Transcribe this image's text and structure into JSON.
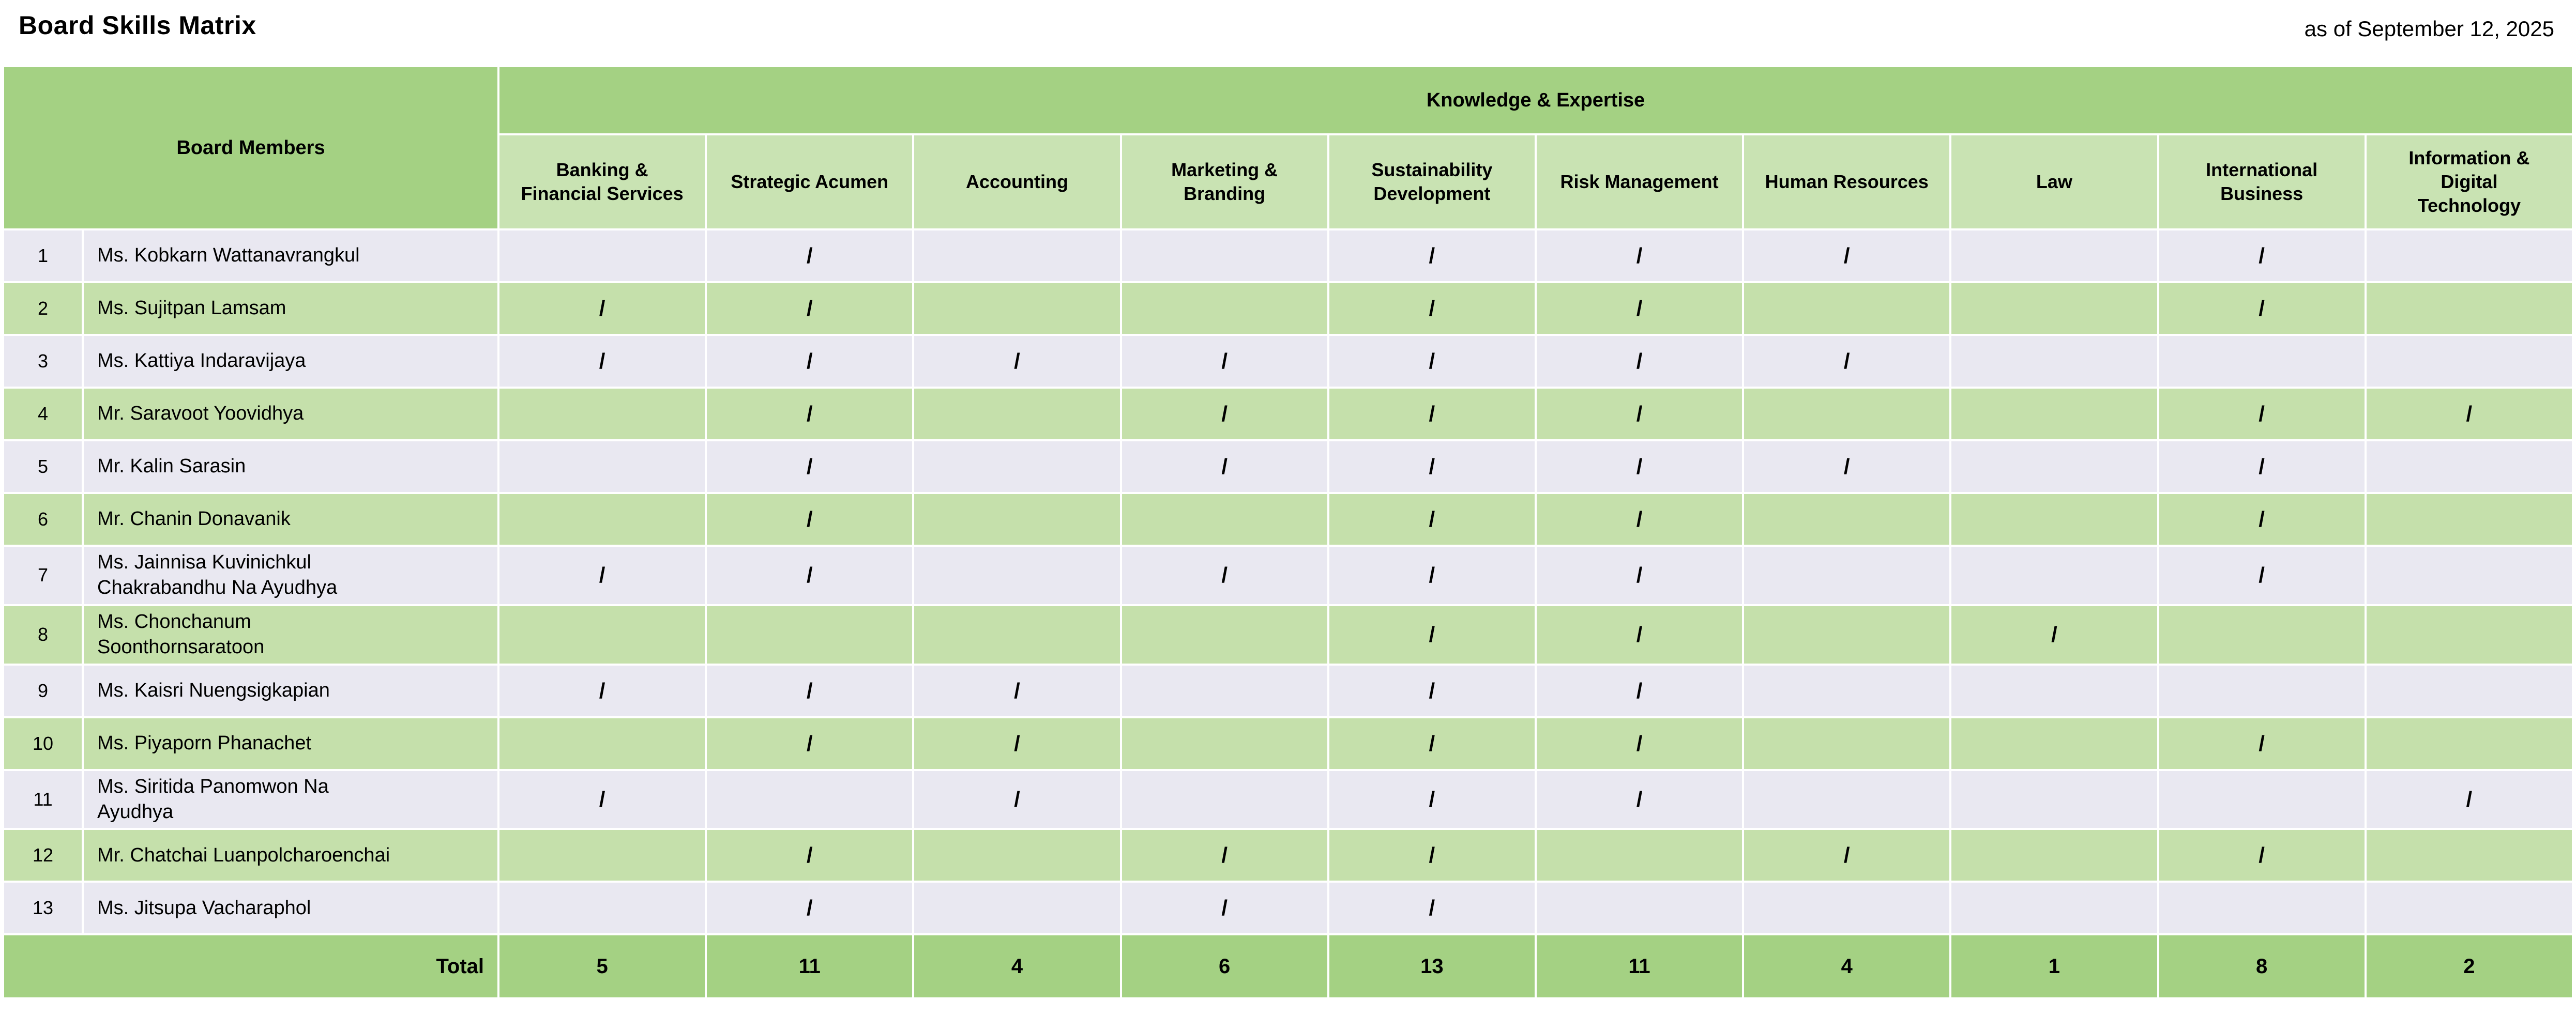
{
  "page": {
    "title": "Board Skills Matrix",
    "date_note": "as of September 12, 2025"
  },
  "table": {
    "corner_header": "Board Members",
    "group_header": "Knowledge & Expertise",
    "columns": [
      "Banking & Financial Services",
      "Strategic Acumen",
      "Accounting",
      "Marketing & Branding",
      "Sustainability Development",
      "Risk Management",
      "Human Resources",
      "Law",
      "International Business",
      "Information & Digital Technology"
    ],
    "mark_symbol": "/",
    "rows": [
      {
        "num": "1",
        "name": "Ms. Kobkarn Wattanavrangkul",
        "marks": [
          "",
          "/",
          "",
          "",
          "/",
          "/",
          "/",
          "",
          "/",
          ""
        ]
      },
      {
        "num": "2",
        "name": "Ms. Sujitpan Lamsam",
        "marks": [
          "/",
          "/",
          "",
          "",
          "/",
          "/",
          "",
          "",
          "/",
          ""
        ]
      },
      {
        "num": "3",
        "name": "Ms. Kattiya Indaravijaya",
        "marks": [
          "/",
          "/",
          "/",
          "/",
          "/",
          "/",
          "/",
          "",
          "",
          ""
        ]
      },
      {
        "num": "4",
        "name": "Mr. Saravoot Yoovidhya",
        "marks": [
          "",
          "/",
          "",
          "/",
          "/",
          "/",
          "",
          "",
          "/",
          "/"
        ]
      },
      {
        "num": "5",
        "name": "Mr. Kalin Sarasin",
        "marks": [
          "",
          "/",
          "",
          "/",
          "/",
          "/",
          "/",
          "",
          "/",
          ""
        ]
      },
      {
        "num": "6",
        "name": "Mr. Chanin Donavanik",
        "marks": [
          "",
          "/",
          "",
          "",
          "/",
          "/",
          "",
          "",
          "/",
          ""
        ]
      },
      {
        "num": "7",
        "name": "Ms. Jainnisa Kuvinichkul Chakrabandhu Na Ayudhya",
        "marks": [
          "/",
          "/",
          "",
          "/",
          "/",
          "/",
          "",
          "",
          "/",
          ""
        ]
      },
      {
        "num": "8",
        "name": "Ms. Chonchanum Soonthornsaratoon",
        "marks": [
          "",
          "",
          "",
          "",
          "/",
          "/",
          "",
          "/",
          "",
          ""
        ]
      },
      {
        "num": "9",
        "name": "Ms. Kaisri Nuengsigkapian",
        "marks": [
          "/",
          "/",
          "/",
          "",
          "/",
          "/",
          "",
          "",
          "",
          ""
        ]
      },
      {
        "num": "10",
        "name": "Ms. Piyaporn Phanachet",
        "marks": [
          "",
          "/",
          "/",
          "",
          "/",
          "/",
          "",
          "",
          "/",
          ""
        ]
      },
      {
        "num": "11",
        "name": "Ms. Siritida Panomwon Na Ayudhya",
        "marks": [
          "/",
          "",
          "/",
          "",
          "/",
          "/",
          "",
          "",
          "",
          "/"
        ]
      },
      {
        "num": "12",
        "name": "Mr. Chatchai Luanpolcharoenchai",
        "marks": [
          "",
          "/",
          "",
          "/",
          "/",
          "",
          "/",
          "",
          "/",
          ""
        ]
      },
      {
        "num": "13",
        "name": "Ms. Jitsupa Vacharaphol",
        "marks": [
          "",
          "/",
          "",
          "/",
          "/",
          "",
          "",
          "",
          "",
          ""
        ]
      }
    ],
    "total_label": "Total",
    "totals": [
      "5",
      "11",
      "4",
      "6",
      "13",
      "11",
      "4",
      "1",
      "8",
      "2"
    ]
  },
  "colors": {
    "header_green": "#a4d183",
    "subheader_green": "#c9e3b3",
    "row_green": "#c5e0ab",
    "row_lavender": "#e9e8f1",
    "grid_white": "#ffffff",
    "text": "#000000"
  }
}
